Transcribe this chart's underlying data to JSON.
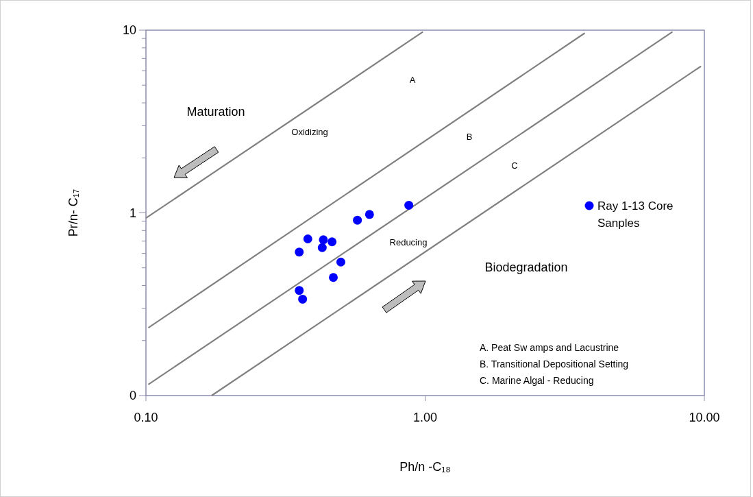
{
  "chart_data": {
    "type": "scatter",
    "xlabel": "Ph/n -C₁₈",
    "ylabel": "Pr/n- C₁₇",
    "log": "xy",
    "grid": false,
    "legend": "right",
    "xlim": [
      0.1,
      10
    ],
    "ylim": [
      0.1,
      10
    ],
    "xticks": [
      {
        "value": 0.1,
        "label": "0.10"
      },
      {
        "value": 1,
        "label": "1.00"
      },
      {
        "value": 10,
        "label": "10.00"
      }
    ],
    "yticks": [
      {
        "value": 0.1,
        "label": "0"
      },
      {
        "value": 0.2,
        "label": null
      },
      {
        "value": 0.3,
        "label": null
      },
      {
        "value": 0.4,
        "label": null
      },
      {
        "value": 0.5,
        "label": null
      },
      {
        "value": 0.6,
        "label": null
      },
      {
        "value": 0.7,
        "label": null
      },
      {
        "value": 0.8,
        "label": null
      },
      {
        "value": 0.9,
        "label": null
      },
      1,
      {
        "value": 2,
        "label": null
      },
      {
        "value": 3,
        "label": null
      },
      {
        "value": 4,
        "label": null
      },
      {
        "value": 5,
        "label": null
      },
      {
        "value": 6,
        "label": null
      },
      {
        "value": 7,
        "label": null
      },
      {
        "value": 8,
        "label": null
      },
      {
        "value": 9,
        "label": null
      },
      10
    ],
    "series": [
      {
        "type": "line",
        "color": "#808080",
        "x": [
          0.1,
          0.982
        ],
        "values": [
          0.936,
          9.79
        ]
      },
      {
        "type": "line",
        "color": "#808080",
        "x": [
          0.102,
          3.73
        ],
        "values": [
          0.235,
          9.64
        ]
      },
      {
        "type": "line",
        "color": "#808080",
        "x": [
          0.102,
          7.69
        ],
        "values": [
          0.115,
          9.79
        ]
      },
      {
        "type": "line",
        "color": "#808080",
        "x": [
          0.172,
          9.73
        ],
        "values": [
          0.1,
          6.35
        ]
      },
      {
        "name": "Ray 1-13 Core Sanples",
        "color": "#0000ff",
        "marker": "circle",
        "x": [
          0.354,
          0.38,
          0.432,
          0.428,
          0.464,
          0.499,
          0.469,
          0.354,
          0.364,
          0.572,
          0.632,
          0.874
        ],
        "values": [
          0.61,
          0.72,
          0.712,
          0.645,
          0.694,
          0.538,
          0.443,
          0.376,
          0.337,
          0.912,
          0.98,
          1.1
        ]
      }
    ],
    "annotations": [
      "Maturation",
      "Oxidizing",
      "A",
      "B",
      "C",
      "Reducing",
      "Biodegradation",
      "A. Peat Sw amps and Lacustrine",
      "B. Transitional Depositional Setting",
      "C. Marine Algal - Reducing"
    ]
  }
}
